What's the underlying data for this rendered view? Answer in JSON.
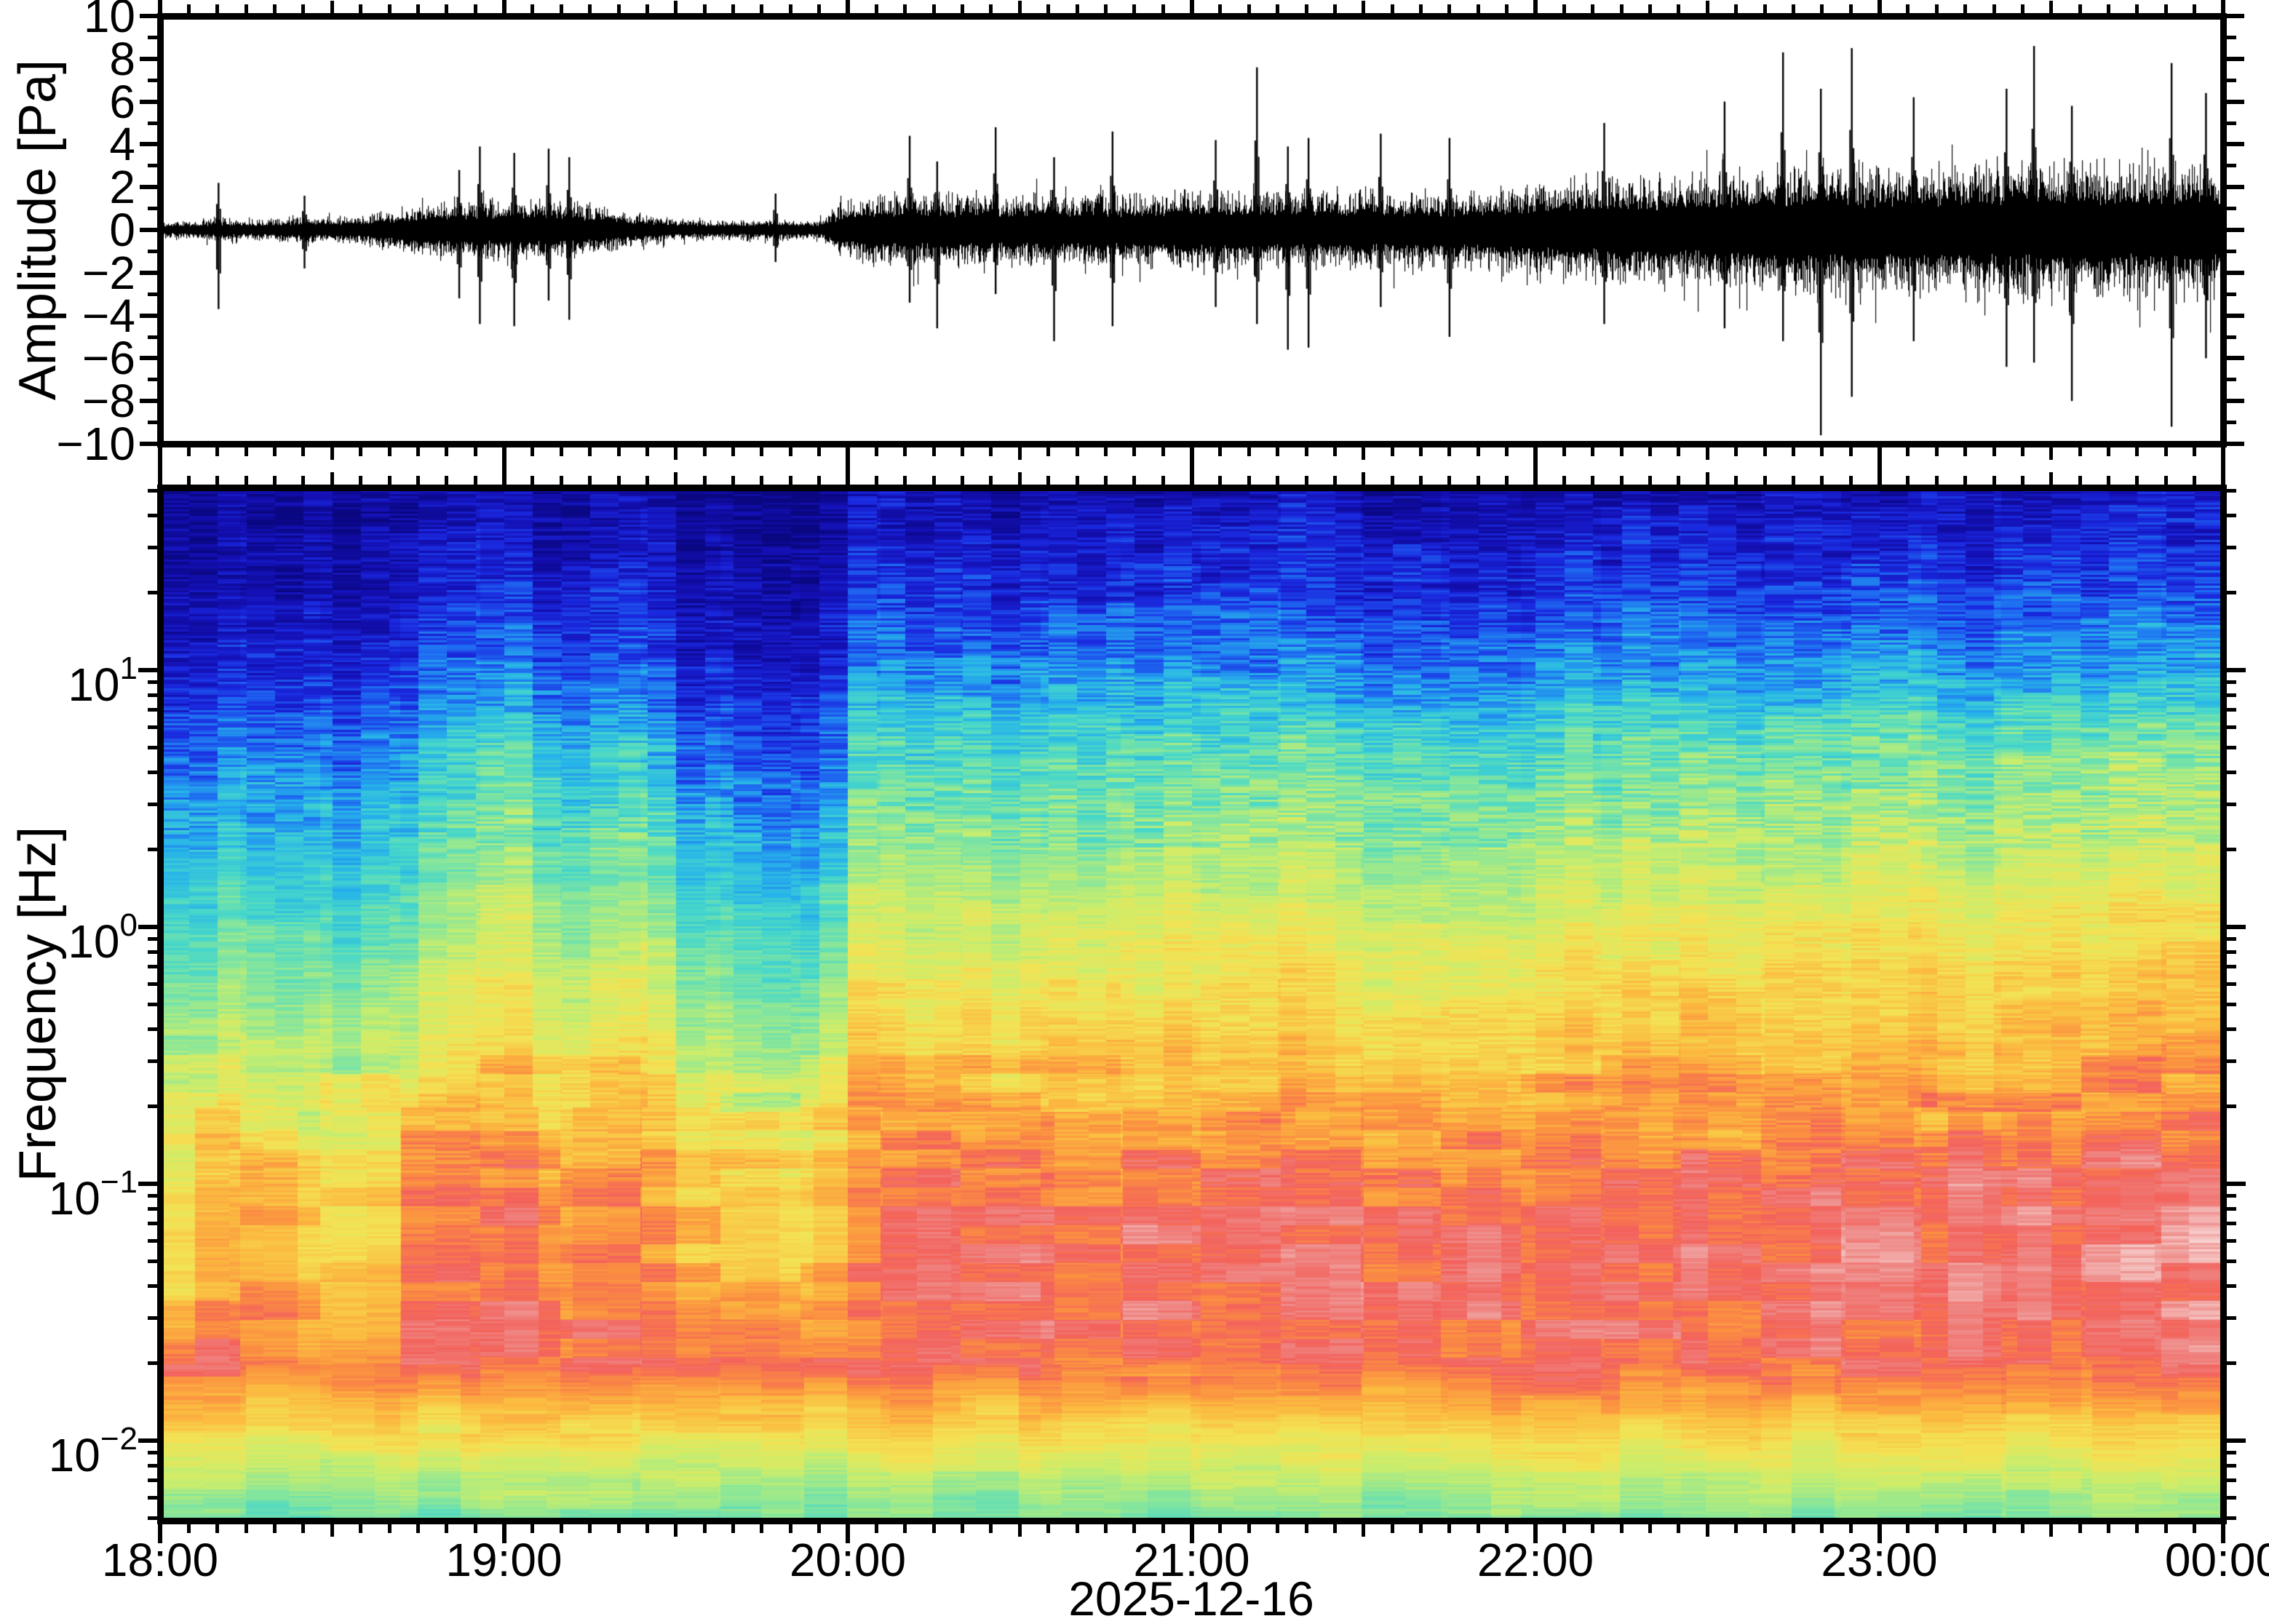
{
  "figure": {
    "background": "#ffffff",
    "frame_color": "#000000",
    "text_color": "#000000"
  },
  "waveform_panel": {
    "y_axis_title": "Amplitude [Pa]",
    "y_tick_values": [
      10,
      8,
      6,
      4,
      2,
      0,
      -2,
      -4,
      -6,
      -8,
      -10
    ],
    "y_tick_labels": [
      "10",
      "8",
      "6",
      "4",
      "2",
      "0",
      "−2",
      "−4",
      "−6",
      "−8",
      "−10"
    ],
    "y_minor_values": [
      9,
      7,
      5,
      3,
      1,
      -1,
      -3,
      -5,
      -7,
      -9
    ]
  },
  "spectrogram_panel": {
    "y_axis_title": "Frequency [Hz]",
    "decade_labels": [
      {
        "base": "10",
        "exp": "1",
        "hz": 10
      },
      {
        "base": "10",
        "exp": "0",
        "hz": 1
      },
      {
        "base": "10",
        "exp": "−1",
        "hz": 0.1
      },
      {
        "base": "10",
        "exp": "−2",
        "hz": 0.01
      }
    ]
  },
  "x_axis": {
    "tick_labels": [
      "18:00",
      "19:00",
      "20:00",
      "21:00",
      "22:00",
      "23:00",
      "00:00"
    ],
    "date_label": "2025-12-16",
    "minor_tick_minutes": 5,
    "medium_tick_minutes": 30,
    "major_tick_minutes": 60
  },
  "chart_data": [
    {
      "type": "line",
      "name": "infrasound-waveform",
      "ylabel": "Amplitude [Pa]",
      "ylim": [
        -10,
        10
      ],
      "x_start": "18:00",
      "x_end": "00:00",
      "x_date": "2025-12-16",
      "envelope_interval_min": 5,
      "envelope_pa": [
        0.35,
        0.35,
        0.5,
        0.4,
        0.45,
        0.55,
        0.5,
        0.6,
        0.8,
        1.0,
        1.2,
        1.1,
        1.3,
        1.2,
        1.2,
        1.0,
        0.8,
        0.6,
        0.45,
        0.4,
        0.38,
        0.45,
        0.4,
        0.4,
        1.3,
        1.4,
        1.5,
        1.4,
        1.5,
        1.4,
        1.45,
        1.5,
        1.45,
        1.5,
        1.45,
        1.5,
        1.55,
        1.6,
        1.65,
        1.55,
        1.5,
        1.55,
        1.6,
        1.55,
        1.5,
        1.55,
        1.5,
        1.6,
        1.9,
        2.0,
        2.1,
        2.1,
        2.2,
        2.2,
        2.3,
        2.4,
        2.5,
        2.6,
        2.7,
        2.6,
        2.5,
        2.5,
        2.6,
        2.7,
        2.6,
        2.8,
        2.8,
        2.7,
        2.6,
        2.7,
        2.8,
        2.7,
        2.7
      ],
      "spikes_hour_pos_neg": [
        [
          0.17,
          2.2,
          -3.7
        ],
        [
          0.42,
          1.6,
          -1.8
        ],
        [
          0.87,
          2.8,
          -3.2
        ],
        [
          0.93,
          3.9,
          -4.4
        ],
        [
          1.03,
          3.6,
          -4.5
        ],
        [
          1.13,
          3.8,
          -3.3
        ],
        [
          1.19,
          3.4,
          -4.2
        ],
        [
          1.79,
          1.7,
          -1.5
        ],
        [
          2.18,
          4.4,
          -3.4
        ],
        [
          2.26,
          3.2,
          -4.6
        ],
        [
          2.43,
          4.8,
          -3.0
        ],
        [
          2.6,
          3.4,
          -5.2
        ],
        [
          2.77,
          4.6,
          -4.5
        ],
        [
          3.07,
          4.2,
          -3.6
        ],
        [
          3.19,
          7.6,
          -4.4
        ],
        [
          3.28,
          3.9,
          -5.6
        ],
        [
          3.34,
          4.3,
          -5.5
        ],
        [
          3.55,
          4.5,
          -3.6
        ],
        [
          3.75,
          4.3,
          -5.0
        ],
        [
          4.2,
          5.0,
          -4.4
        ],
        [
          4.55,
          6.0,
          -4.6
        ],
        [
          4.72,
          8.3,
          -5.2
        ],
        [
          4.83,
          6.6,
          -9.6
        ],
        [
          4.92,
          8.5,
          -7.8
        ],
        [
          5.1,
          6.2,
          -5.2
        ],
        [
          5.37,
          6.6,
          -6.4
        ],
        [
          5.45,
          8.6,
          -6.2
        ],
        [
          5.56,
          5.8,
          -8.0
        ],
        [
          5.85,
          7.8,
          -9.2
        ],
        [
          5.95,
          6.4,
          -6.0
        ]
      ]
    },
    {
      "type": "heatmap",
      "name": "spectrogram",
      "ylabel": "Frequency [Hz]",
      "log_scale": true,
      "ylim_hz": [
        0.005,
        51
      ],
      "x_start": "18:00",
      "x_end": "00:00",
      "freq_nodes_hz": [
        50,
        20,
        10,
        5,
        2,
        1,
        0.5,
        0.2,
        0.1,
        0.05,
        0.02,
        0.01,
        0.005
      ],
      "band_base_power": [
        0.02,
        0.05,
        0.1,
        0.18,
        0.28,
        0.36,
        0.44,
        0.56,
        0.64,
        0.66,
        0.82,
        0.62,
        0.45
      ],
      "band_activity_gain": [
        0.1,
        0.18,
        0.25,
        0.34,
        0.32,
        0.32,
        0.3,
        0.26,
        0.28,
        0.28,
        0.06,
        0.05,
        0.05
      ],
      "activity_interval_min": 15,
      "activity": [
        0.15,
        0.35,
        0.25,
        0.55,
        0.7,
        0.55,
        0.25,
        0.2,
        0.75,
        0.72,
        0.72,
        0.75,
        0.8,
        0.8,
        0.78,
        0.75,
        0.8,
        0.82,
        0.84,
        0.88,
        0.9,
        0.88,
        0.9,
        0.92,
        0.9
      ],
      "colormap_stops": [
        [
          0.0,
          "#0a0780"
        ],
        [
          0.1,
          "#1410b4"
        ],
        [
          0.18,
          "#1b2ae0"
        ],
        [
          0.26,
          "#1f6cf2"
        ],
        [
          0.34,
          "#27b4ea"
        ],
        [
          0.42,
          "#48d8ca"
        ],
        [
          0.5,
          "#8ae79a"
        ],
        [
          0.58,
          "#cbee6c"
        ],
        [
          0.66,
          "#f4e354"
        ],
        [
          0.74,
          "#fcba40"
        ],
        [
          0.81,
          "#fb8e42"
        ],
        [
          0.87,
          "#f4625c"
        ],
        [
          0.93,
          "#ef8b88"
        ],
        [
          1.0,
          "#f8d6d4"
        ]
      ]
    }
  ]
}
